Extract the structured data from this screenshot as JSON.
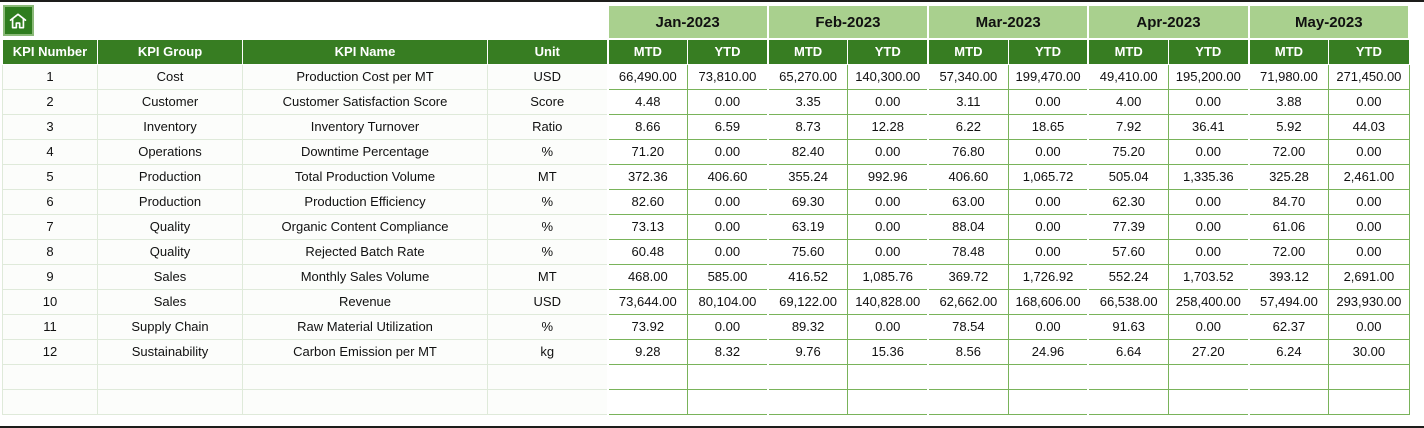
{
  "colors": {
    "header_dark_green": "#377d22",
    "header_light_green": "#a9d08e",
    "grid_green": "#79b35a",
    "home_button_green": "#2f7d1f"
  },
  "header": {
    "months": [
      "Jan-2023",
      "Feb-2023",
      "Mar-2023",
      "Apr-2023",
      "May-2023"
    ],
    "fixed_columns": [
      "KPI Number",
      "KPI Group",
      "KPI Name",
      "Unit"
    ],
    "sub_columns": [
      "MTD",
      "YTD"
    ]
  },
  "rows": [
    {
      "number": "1",
      "group": "Cost",
      "name": "Production Cost per MT",
      "unit": "USD",
      "values": [
        "66,490.00",
        "73,810.00",
        "65,270.00",
        "140,300.00",
        "57,340.00",
        "199,470.00",
        "49,410.00",
        "195,200.00",
        "71,980.00",
        "271,450.00"
      ]
    },
    {
      "number": "2",
      "group": "Customer",
      "name": "Customer Satisfaction Score",
      "unit": "Score",
      "values": [
        "4.48",
        "0.00",
        "3.35",
        "0.00",
        "3.11",
        "0.00",
        "4.00",
        "0.00",
        "3.88",
        "0.00"
      ]
    },
    {
      "number": "3",
      "group": "Inventory",
      "name": "Inventory Turnover",
      "unit": "Ratio",
      "values": [
        "8.66",
        "6.59",
        "8.73",
        "12.28",
        "6.22",
        "18.65",
        "7.92",
        "36.41",
        "5.92",
        "44.03"
      ]
    },
    {
      "number": "4",
      "group": "Operations",
      "name": "Downtime Percentage",
      "unit": "%",
      "values": [
        "71.20",
        "0.00",
        "82.40",
        "0.00",
        "76.80",
        "0.00",
        "75.20",
        "0.00",
        "72.00",
        "0.00"
      ]
    },
    {
      "number": "5",
      "group": "Production",
      "name": "Total Production Volume",
      "unit": "MT",
      "values": [
        "372.36",
        "406.60",
        "355.24",
        "992.96",
        "406.60",
        "1,065.72",
        "505.04",
        "1,335.36",
        "325.28",
        "2,461.00"
      ]
    },
    {
      "number": "6",
      "group": "Production",
      "name": "Production Efficiency",
      "unit": "%",
      "values": [
        "82.60",
        "0.00",
        "69.30",
        "0.00",
        "63.00",
        "0.00",
        "62.30",
        "0.00",
        "84.70",
        "0.00"
      ]
    },
    {
      "number": "7",
      "group": "Quality",
      "name": "Organic Content Compliance",
      "unit": "%",
      "values": [
        "73.13",
        "0.00",
        "63.19",
        "0.00",
        "88.04",
        "0.00",
        "77.39",
        "0.00",
        "61.06",
        "0.00"
      ]
    },
    {
      "number": "8",
      "group": "Quality",
      "name": "Rejected Batch Rate",
      "unit": "%",
      "values": [
        "60.48",
        "0.00",
        "75.60",
        "0.00",
        "78.48",
        "0.00",
        "57.60",
        "0.00",
        "72.00",
        "0.00"
      ]
    },
    {
      "number": "9",
      "group": "Sales",
      "name": "Monthly Sales Volume",
      "unit": "MT",
      "values": [
        "468.00",
        "585.00",
        "416.52",
        "1,085.76",
        "369.72",
        "1,726.92",
        "552.24",
        "1,703.52",
        "393.12",
        "2,691.00"
      ]
    },
    {
      "number": "10",
      "group": "Sales",
      "name": "Revenue",
      "unit": "USD",
      "values": [
        "73,644.00",
        "80,104.00",
        "69,122.00",
        "140,828.00",
        "62,662.00",
        "168,606.00",
        "66,538.00",
        "258,400.00",
        "57,494.00",
        "293,930.00"
      ]
    },
    {
      "number": "11",
      "group": "Supply Chain",
      "name": "Raw Material Utilization",
      "unit": "%",
      "values": [
        "73.92",
        "0.00",
        "89.32",
        "0.00",
        "78.54",
        "0.00",
        "91.63",
        "0.00",
        "62.37",
        "0.00"
      ]
    },
    {
      "number": "12",
      "group": "Sustainability",
      "name": "Carbon Emission per MT",
      "unit": "kg",
      "values": [
        "9.28",
        "8.32",
        "9.76",
        "15.36",
        "8.56",
        "24.96",
        "6.64",
        "27.20",
        "6.24",
        "30.00"
      ]
    }
  ],
  "empty_rows": 2
}
